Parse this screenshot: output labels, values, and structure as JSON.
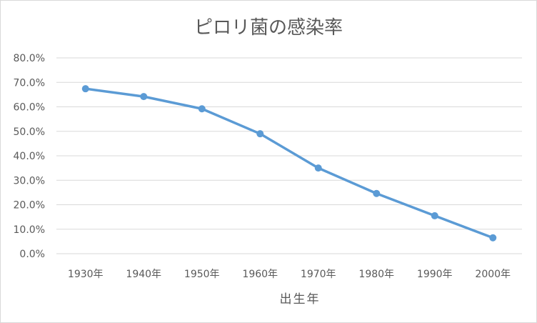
{
  "chart_data": {
    "type": "line",
    "title": "ピロリ菌の感染率",
    "xlabel": "出生年",
    "ylabel": "",
    "categories": [
      "1930年",
      "1940年",
      "1950年",
      "1960年",
      "1970年",
      "1980年",
      "1990年",
      "2000年"
    ],
    "series": [
      {
        "values": [
          0.674,
          0.642,
          0.592,
          0.49,
          0.35,
          0.246,
          0.155,
          0.065
        ]
      }
    ],
    "ylim": [
      0,
      0.8
    ],
    "y_ticks": [
      0,
      0.1,
      0.2,
      0.3,
      0.4,
      0.5,
      0.6,
      0.7,
      0.8
    ],
    "y_tick_labels": [
      "0.0%",
      "10.0%",
      "20.0%",
      "30.0%",
      "40.0%",
      "50.0%",
      "60.0%",
      "70.0%",
      "80.0%"
    ],
    "grid": true,
    "legend": "none",
    "colors": {
      "series": "#5b9bd5",
      "grid": "#d9d9d9",
      "text": "#595959"
    }
  }
}
